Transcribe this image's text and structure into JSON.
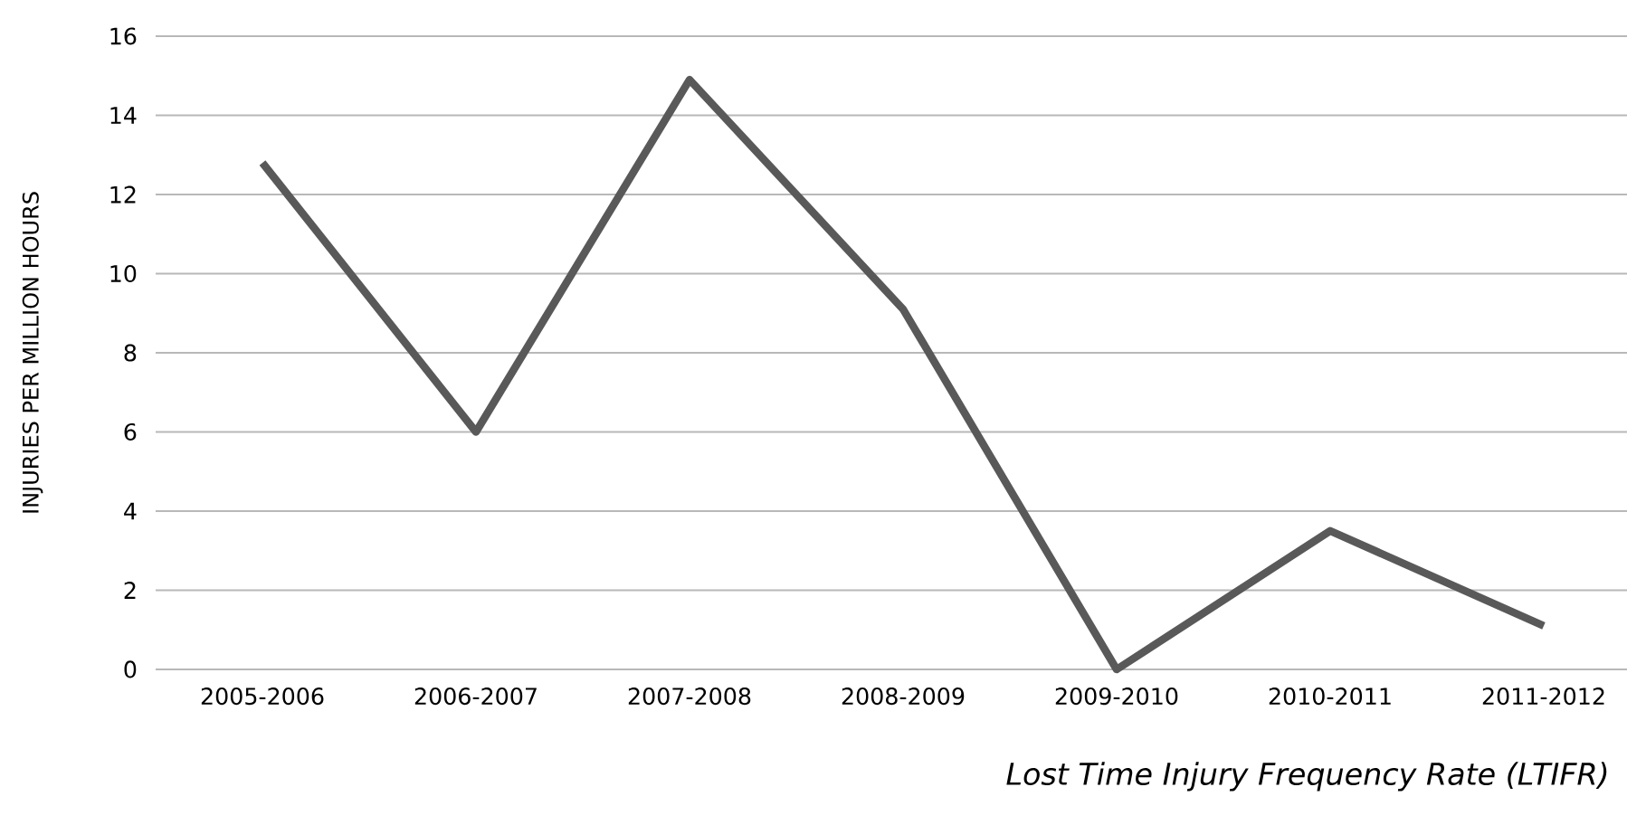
{
  "chart_data": {
    "type": "line",
    "title": "Lost Time Injury Frequency Rate (LTIFR)",
    "ylabel": "INJURIES PER MILLION HOURS",
    "categories": [
      "2005-2006",
      "2006-2007",
      "2007-2008",
      "2008-2009",
      "2009-2010",
      "2010-2011",
      "2011-2012"
    ],
    "series": [
      {
        "color": "#595959",
        "values": [
          12.8,
          6.0,
          14.9,
          9.1,
          0,
          3.5,
          1.1
        ]
      }
    ],
    "ylim": [
      0,
      16
    ],
    "yticks": [
      0,
      2,
      4,
      6,
      8,
      10,
      12,
      14,
      16
    ],
    "grid": "y",
    "marker": "none",
    "line_style": "solid"
  }
}
